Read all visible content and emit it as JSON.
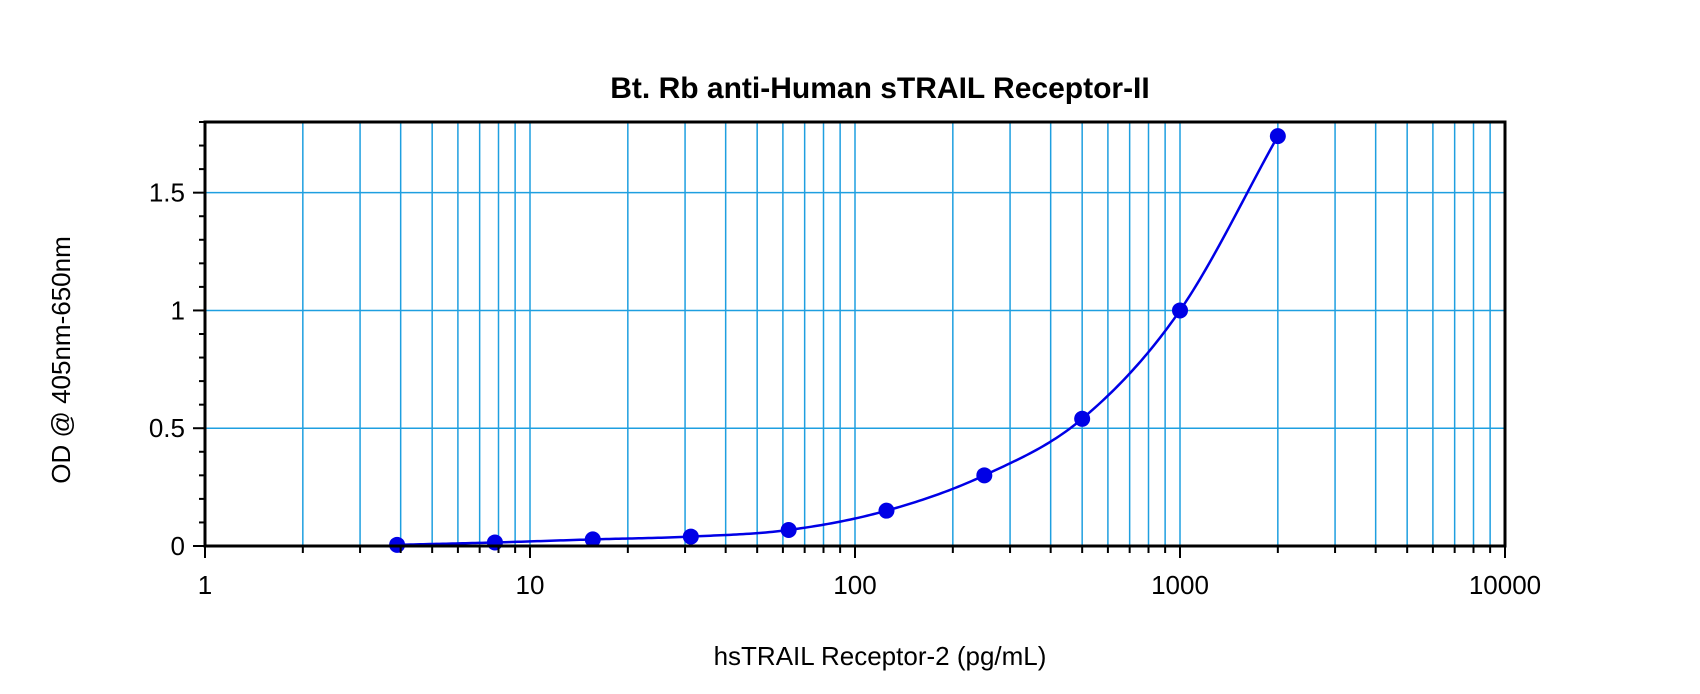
{
  "chart_data": {
    "type": "scatter",
    "title": "Bt. Rb anti-Human sTRAIL Receptor-II",
    "xlabel": "hsTRAIL Receptor-2 (pg/mL)",
    "ylabel": "OD @ 405nm-650nm",
    "xscale": "log",
    "xlim": [
      1,
      10000
    ],
    "ylim": [
      0,
      1.8
    ],
    "x_ticks": [
      1,
      10,
      100,
      1000,
      10000
    ],
    "x_tick_labels": [
      "1",
      "10",
      "100",
      "1000",
      "10000"
    ],
    "y_ticks": [
      0,
      0.5,
      1,
      1.5
    ],
    "y_tick_labels": [
      "0",
      "0.5",
      "1",
      "1.5"
    ],
    "grid": true,
    "legend": "none",
    "series": [
      {
        "x": [
          3.9,
          7.8,
          15.6,
          31.25,
          62.5,
          125,
          250,
          500,
          1000,
          2000
        ],
        "y": [
          0.005,
          0.015,
          0.028,
          0.04,
          0.068,
          0.15,
          0.3,
          0.54,
          1.0,
          1.74
        ],
        "fit_curve": true
      }
    ],
    "colors": {
      "points": "#0000e6",
      "curve": "#0000e6",
      "grid": "#1e9fe0",
      "frame": "#000000"
    }
  }
}
